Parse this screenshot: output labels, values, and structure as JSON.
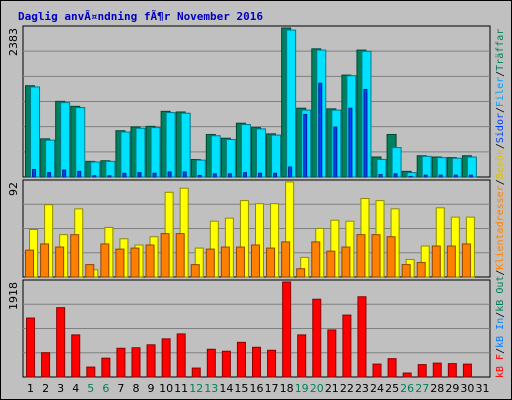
{
  "chart_data": {
    "type": "bar",
    "title": "Daglig anvÃ¤ndning fÃ¶r November 2016",
    "days": [
      "1",
      "2",
      "3",
      "4",
      "5",
      "6",
      "7",
      "8",
      "9",
      "10",
      "11",
      "12",
      "13",
      "14",
      "15",
      "16",
      "17",
      "18",
      "19",
      "20",
      "21",
      "22",
      "23",
      "24",
      "25",
      "26",
      "27",
      "28",
      "29",
      "30",
      "31"
    ],
    "weekend_days": [
      "5",
      "6",
      "12",
      "13",
      "19",
      "20",
      "26",
      "27"
    ],
    "panels": [
      {
        "name": "hits-files-pages",
        "ymax_label": "2383",
        "ylim": [
          0,
          2383
        ],
        "series": [
          {
            "key": "Träffar",
            "color": "#00805c",
            "values": [
              1460,
              610,
              1210,
              1130,
              250,
              260,
              740,
              800,
              810,
              1050,
              1040,
              280,
              680,
              620,
              860,
              790,
              690,
              2383,
              1100,
              2050,
              1090,
              1630,
              2030,
              320,
              680,
              90,
              340,
              320,
              310,
              340,
              0
            ]
          },
          {
            "key": "Filer",
            "color": "#00e0ff",
            "values": [
              1440,
              590,
              1190,
              1110,
              240,
              250,
              720,
              780,
              790,
              1030,
              1020,
              270,
              660,
              600,
              840,
              770,
              670,
              2350,
              1070,
              2030,
              1070,
              1620,
              2010,
              280,
              470,
              70,
              330,
              310,
              300,
              320,
              0
            ]
          },
          {
            "key": "Sidor",
            "color": "#0040ff",
            "values": [
              120,
              70,
              110,
              90,
              20,
              20,
              60,
              70,
              60,
              80,
              80,
              25,
              50,
              50,
              70,
              60,
              60,
              160,
              1000,
              1500,
              800,
              1100,
              1400,
              40,
              50,
              10,
              30,
              30,
              30,
              30,
              0
            ]
          }
        ]
      },
      {
        "name": "visits-sites",
        "ymax_label": "92",
        "ylim": [
          0,
          92
        ],
        "series": [
          {
            "key": "Besök",
            "color": "#ffff00",
            "values": [
              46,
              70,
              41,
              66,
              7,
              48,
              37,
              31,
              39,
              82,
              86,
              28,
              54,
              57,
              74,
              71,
              71,
              92,
              19,
              47,
              55,
              54,
              76,
              74,
              66,
              17,
              30,
              67,
              58,
              58,
              0
            ]
          },
          {
            "key": "Klientadresser",
            "color": "#ff8000",
            "values": [
              26,
              32,
              29,
              41,
              12,
              32,
              27,
              28,
              31,
              42,
              42,
              12,
              27,
              29,
              29,
              31,
              28,
              34,
              8,
              34,
              25,
              29,
              41,
              41,
              39,
              12,
              14,
              30,
              30,
              32,
              0
            ]
          }
        ]
      },
      {
        "name": "kbytes",
        "ymax_label": "1918",
        "ylim": [
          0,
          1918
        ],
        "series": [
          {
            "key": "kB F",
            "color": "#ff0000",
            "values": [
              1190,
              490,
              1400,
              850,
              200,
              380,
              580,
              590,
              650,
              770,
              870,
              180,
              560,
              520,
              700,
              600,
              540,
              1918,
              850,
              1570,
              950,
              1250,
              1620,
              260,
              370,
              80,
              250,
              280,
              270,
              260,
              0
            ]
          }
        ]
      }
    ],
    "right_legend": [
      {
        "text": "Träffar",
        "color": "#00805c"
      },
      {
        "text": "Filer",
        "color": "#00a0ff"
      },
      {
        "text": "Sidor",
        "color": "#0040ff"
      },
      {
        "text": "Besök",
        "color": "#e0c000"
      },
      {
        "text": "Klientadresser",
        "color": "#ff8000"
      },
      {
        "text": "kB Out",
        "color": "#00805c"
      },
      {
        "text": "kB In",
        "color": "#0080ff"
      },
      {
        "text": "kB F",
        "color": "#ff0000"
      }
    ],
    "legend_separator": "/",
    "colors": {
      "background": "#c0c0c0",
      "title": "#0000c0",
      "weekday_label": "#000000",
      "weekend_label": "#00805c",
      "grid": "#808080"
    }
  }
}
